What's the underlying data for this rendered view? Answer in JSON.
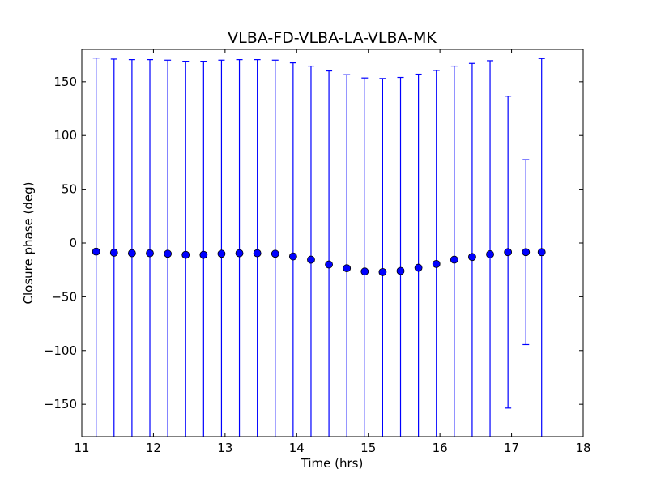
{
  "chart_data": {
    "type": "scatter",
    "title": "VLBA-FD-VLBA-LA-VLBA-MK",
    "xlabel": "Time (hrs)",
    "ylabel": "Closure phase (deg)",
    "xlim": [
      11,
      18
    ],
    "ylim": [
      -180,
      180
    ],
    "x_ticks": [
      11,
      12,
      13,
      14,
      15,
      16,
      17,
      18
    ],
    "x_tick_labels": [
      "11",
      "12",
      "13",
      "14",
      "15",
      "16",
      "17",
      "18"
    ],
    "y_ticks": [
      150,
      100,
      50,
      0,
      -50,
      -100,
      -150
    ],
    "y_tick_labels": [
      "150",
      "100",
      "50",
      "0",
      "−50",
      "−100",
      "−150"
    ],
    "grid": false,
    "legend": "none",
    "marker_color": "#0000ff",
    "errorbar_color": "#0000ff",
    "series": [
      {
        "x": [
          11.2,
          11.45,
          11.7,
          11.95,
          12.2,
          12.45,
          12.7,
          12.95,
          13.2,
          13.45,
          13.7,
          13.95,
          14.2,
          14.45,
          14.7,
          14.95,
          15.2,
          15.45,
          15.7,
          15.95,
          16.2,
          16.45,
          16.7,
          16.95,
          17.2,
          17.42
        ],
        "y": [
          -8,
          -9,
          -9.5,
          -9.5,
          -10,
          -11,
          -11,
          -10,
          -9.5,
          -9.5,
          -10,
          -12.5,
          -15.5,
          -20,
          -23.5,
          -26.5,
          -27,
          -26,
          -23,
          -19.5,
          -15.5,
          -13,
          -10.5,
          -8.5,
          -8.5,
          -8.5
        ],
        "yerr": [
          180,
          180,
          180,
          180,
          180,
          180,
          180,
          180,
          180,
          180,
          180,
          180,
          180,
          180,
          180,
          180,
          180,
          180,
          180,
          180,
          180,
          180,
          180,
          145,
          86,
          180
        ]
      }
    ]
  }
}
